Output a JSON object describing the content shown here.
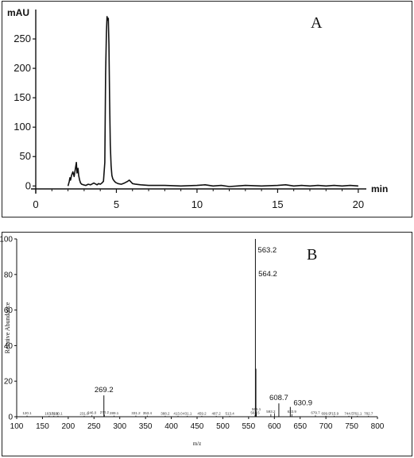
{
  "chart_data": [
    {
      "type": "line",
      "panel_label": "A",
      "ylabel": "mAU",
      "xlabel": "min",
      "xlim": [
        0,
        20.5
      ],
      "ylim": [
        -5,
        300
      ],
      "x_ticks": [
        0,
        5,
        10,
        15,
        20
      ],
      "y_ticks": [
        0,
        50,
        100,
        150,
        200,
        250
      ],
      "x_tick_labels": [
        "0",
        "5",
        "10",
        "15",
        "20"
      ],
      "y_tick_labels": [
        "0",
        "50",
        "100",
        "150",
        "200",
        "250"
      ],
      "series": [
        {
          "x": [
            2.0,
            2.08,
            2.12,
            2.16,
            2.22,
            2.3,
            2.38,
            2.45,
            2.52,
            2.56,
            2.62,
            2.66,
            2.72,
            2.78,
            2.85,
            2.95,
            3.1,
            3.25,
            3.4,
            3.6,
            3.8,
            3.9,
            4.0,
            4.1,
            4.2,
            4.28,
            4.33,
            4.38,
            4.42,
            4.46,
            4.5,
            4.54,
            4.58,
            4.62,
            4.67,
            4.72,
            4.78,
            4.85,
            4.95,
            5.1,
            5.3,
            5.5,
            5.7,
            5.8,
            5.9,
            6.0,
            6.2,
            6.5,
            7.0,
            8.0,
            9.0,
            10.0,
            10.5,
            11.0,
            11.5,
            12.0,
            12.5,
            13.0,
            14.0,
            15.0,
            15.5,
            16.0,
            16.5,
            17.0,
            17.5,
            18.0,
            18.5,
            19.0,
            19.5,
            20.0
          ],
          "y": [
            0,
            8,
            14,
            10,
            18,
            24,
            16,
            28,
            40,
            22,
            30,
            18,
            10,
            5,
            3,
            2,
            1,
            3,
            2,
            5,
            2,
            4,
            3,
            5,
            8,
            40,
            190,
            260,
            288,
            282,
            285,
            240,
            150,
            70,
            35,
            18,
            12,
            9,
            6,
            4,
            3,
            5,
            8,
            10,
            7,
            4,
            3,
            2,
            1,
            1,
            0,
            1,
            2,
            0,
            1,
            -1,
            0,
            1,
            0,
            1,
            2,
            0,
            1,
            0,
            1,
            0,
            1,
            0,
            1,
            0
          ],
          "color": "#111111"
        }
      ]
    },
    {
      "type": "bar",
      "panel_label": "B",
      "ylabel": "Relative Abundance",
      "xlabel": "m/z",
      "xlim": [
        100,
        800
      ],
      "ylim": [
        0,
        100
      ],
      "x_ticks": [
        100,
        150,
        200,
        250,
        300,
        350,
        400,
        450,
        500,
        550,
        600,
        650,
        700,
        750,
        800
      ],
      "y_ticks": [
        0,
        20,
        40,
        60,
        80,
        100
      ],
      "x_tick_labels": [
        "100",
        "150",
        "200",
        "250",
        "300",
        "350",
        "400",
        "450",
        "500",
        "550",
        "600",
        "650",
        "700",
        "750",
        "800"
      ],
      "y_tick_labels": [
        "0",
        "20",
        "40",
        "60",
        "80",
        "100"
      ],
      "peaks": [
        {
          "mz": 269.2,
          "abundance": 12,
          "label": "269.2"
        },
        {
          "mz": 563.2,
          "abundance": 100,
          "label": "563.2"
        },
        {
          "mz": 564.2,
          "abundance": 27,
          "label": "564.2"
        },
        {
          "mz": 608.7,
          "abundance": 7.5,
          "label": "608.7"
        },
        {
          "mz": 630.9,
          "abundance": 5.5,
          "label": "630.9"
        },
        {
          "mz": 565.1,
          "abundance": 3,
          "label": "565.1"
        },
        {
          "mz": 593.2,
          "abundance": 1.5,
          "label": "593.2"
        },
        {
          "mz": 600.5,
          "abundance": 2,
          "label": ""
        },
        {
          "mz": 633.9,
          "abundance": 1.5,
          "label": "633.9"
        },
        {
          "mz": 562.5,
          "abundance": 1,
          "label": "562.5"
        },
        {
          "mz": 120.1,
          "abundance": 0.6,
          "label": "120.1"
        },
        {
          "mz": 163.0,
          "abundance": 0.5,
          "label": "163.0"
        },
        {
          "mz": 172.1,
          "abundance": 0.5,
          "label": "172.1"
        },
        {
          "mz": 180.1,
          "abundance": 0.5,
          "label": "180.1"
        },
        {
          "mz": 231.0,
          "abundance": 0.5,
          "label": "231.0"
        },
        {
          "mz": 246.0,
          "abundance": 0.8,
          "label": "246.0"
        },
        {
          "mz": 270.2,
          "abundance": 1.2,
          "label": "270.2"
        },
        {
          "mz": 289.1,
          "abundance": 0.6,
          "label": "289.1"
        },
        {
          "mz": 331.2,
          "abundance": 0.6,
          "label": "331.2"
        },
        {
          "mz": 353.4,
          "abundance": 0.6,
          "label": "353.4"
        },
        {
          "mz": 388.2,
          "abundance": 0.5,
          "label": "388.2"
        },
        {
          "mz": 413.0,
          "abundance": 0.5,
          "label": "413.0"
        },
        {
          "mz": 431.1,
          "abundance": 0.5,
          "label": "431.1"
        },
        {
          "mz": 459.2,
          "abundance": 0.5,
          "label": "459.2"
        },
        {
          "mz": 487.2,
          "abundance": 0.5,
          "label": "487.2"
        },
        {
          "mz": 513.4,
          "abundance": 0.5,
          "label": "513.4"
        },
        {
          "mz": 679.7,
          "abundance": 0.8,
          "label": "679.7"
        },
        {
          "mz": 699.9,
          "abundance": 0.5,
          "label": "699.9"
        },
        {
          "mz": 715.9,
          "abundance": 0.5,
          "label": "715.9"
        },
        {
          "mz": 744.5,
          "abundance": 0.5,
          "label": "744.5"
        },
        {
          "mz": 761.1,
          "abundance": 0.5,
          "label": "761.1"
        },
        {
          "mz": 782.7,
          "abundance": 0.5,
          "label": "782.7"
        }
      ]
    }
  ]
}
